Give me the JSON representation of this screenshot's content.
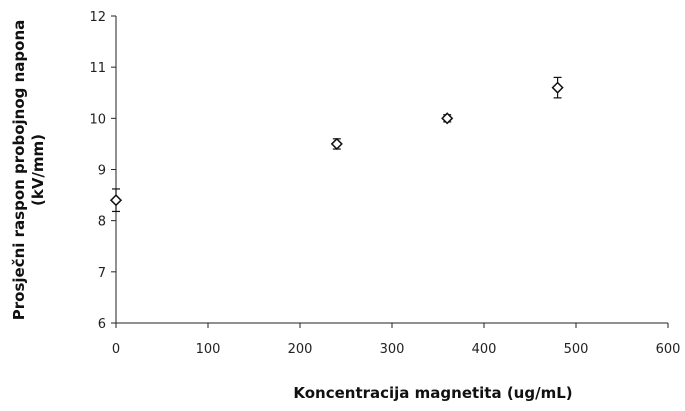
{
  "chart_data": {
    "type": "scatter",
    "title": "",
    "xlabel": "Koncentracija magnetita (ug/mL)",
    "ylabel_line1": "Prosječni raspon probojnog napona",
    "ylabel_line2": "(kV/mm)",
    "xlim": [
      0,
      600
    ],
    "ylim": [
      6,
      12
    ],
    "xticks": [
      0,
      100,
      200,
      300,
      400,
      500,
      600
    ],
    "yticks": [
      6,
      7,
      8,
      9,
      10,
      11,
      12
    ],
    "grid": false,
    "marker": "diamond-open",
    "series": [
      {
        "points": [
          {
            "x": 0,
            "y": 8.4,
            "err": 0.22
          },
          {
            "x": 240,
            "y": 9.5,
            "err": 0.1
          },
          {
            "x": 360,
            "y": 10.0,
            "err": 0.07
          },
          {
            "x": 480,
            "y": 10.6,
            "err": 0.2
          }
        ]
      }
    ],
    "colors": {
      "marker": "#111111",
      "axis": "#222222"
    }
  }
}
